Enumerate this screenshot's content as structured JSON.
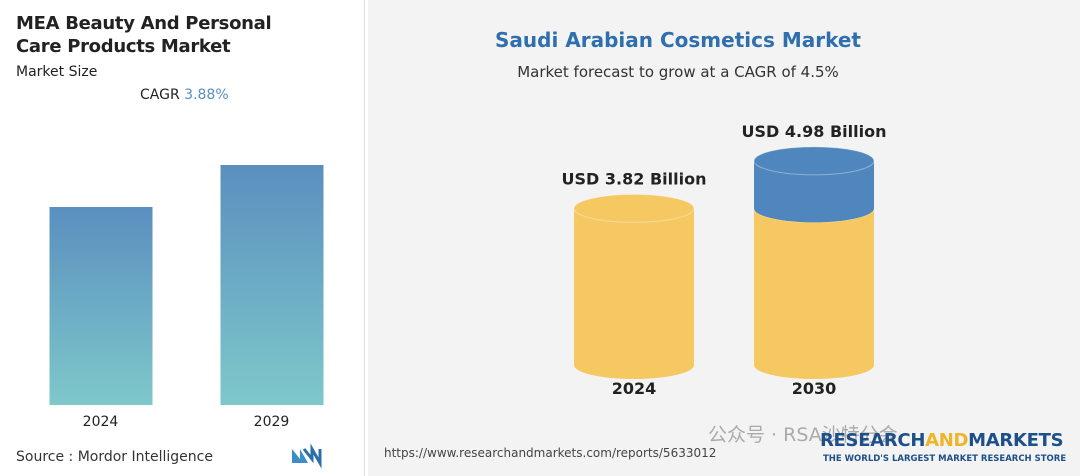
{
  "chart_data": [
    {
      "type": "bar",
      "title": "MEA Beauty And Personal Care Products Market",
      "subtitle": "Market Size",
      "annotation": {
        "label": "CAGR",
        "value": "3.88%"
      },
      "categories": [
        "2024",
        "2029"
      ],
      "values": [
        82.5,
        100
      ],
      "ylim": [
        0,
        100
      ],
      "colors": [
        "#5a8fbf",
        "#7ec8ca"
      ],
      "source": "Source : Mordor Intelligence"
    },
    {
      "type": "cylinder",
      "title": "Saudi Arabian Cosmetics Market",
      "subtitle": "Market forecast to grow at a CAGR of 4.5%",
      "categories": [
        "2024",
        "2030"
      ],
      "values": [
        3.82,
        4.98
      ],
      "value_labels": [
        "USD 3.82 Billion",
        "USD 4.98 Billion"
      ],
      "ylim": [
        0,
        5
      ],
      "colors": [
        "#f5c862",
        "#4f86bd"
      ],
      "source": "https://www.researchandmarkets.com/reports/5633012",
      "logo": [
        "RESEARCH",
        "AND",
        "MARKETS"
      ],
      "tagline": "THE WORLD'S LARGEST MARKET RESEARCH STORE",
      "watermark": "公众号 · RSA沙特分会"
    }
  ]
}
